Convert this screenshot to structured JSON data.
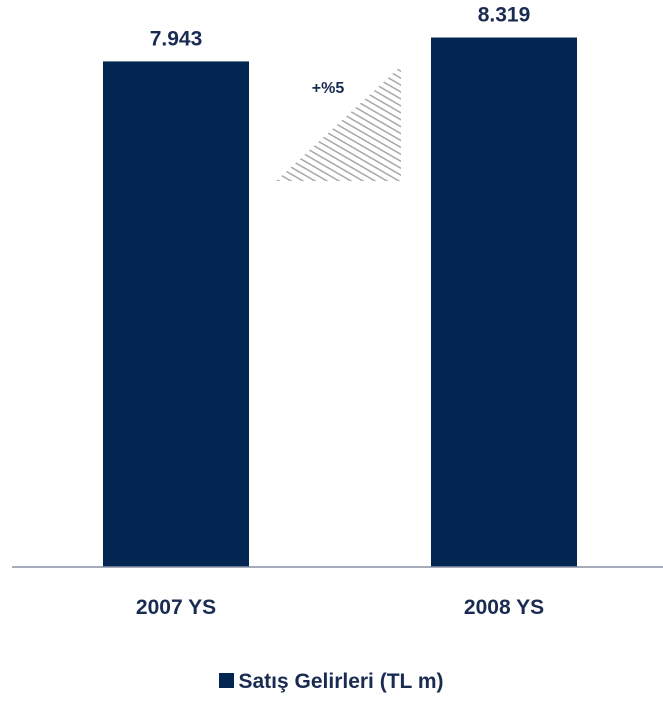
{
  "chart_data": {
    "type": "bar",
    "categories": [
      "2007 YS",
      "2008 YS"
    ],
    "series": [
      {
        "name": "Satış Gelirleri (TL m)",
        "values": [
          7943,
          8319
        ]
      }
    ],
    "data_labels": [
      "7.943",
      "8.319"
    ],
    "annotation": "+%5",
    "title": "",
    "xlabel": "",
    "ylabel": "",
    "ylim": [
      0,
      8500
    ],
    "grid": false,
    "legend_position": "bottom"
  },
  "colors": {
    "bar": "#022552",
    "text": "#1a2b52",
    "axis": "#8a91a6",
    "hatch": "#a8a8a8"
  }
}
